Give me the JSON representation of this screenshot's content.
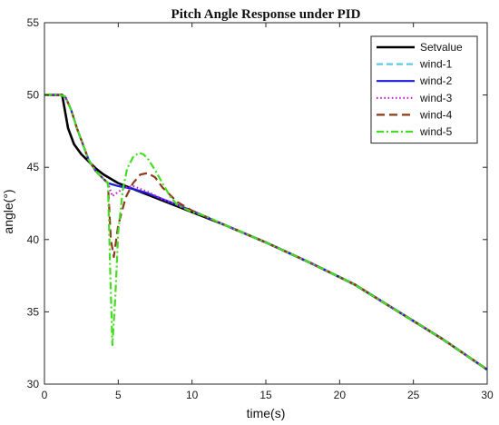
{
  "chart_data": {
    "type": "line",
    "title": "Pitch Angle Response under PID",
    "xlabel": "time(s)",
    "ylabel": "angle(°)",
    "xlim": [
      0,
      30
    ],
    "ylim": [
      30,
      55
    ],
    "xticks": [
      0,
      5,
      10,
      15,
      20,
      25,
      30
    ],
    "yticks": [
      30,
      35,
      40,
      45,
      50,
      55
    ],
    "grid": false,
    "legend_position": "top-right",
    "series": [
      {
        "name": "Setvalue",
        "color": "#000000",
        "dash": "solid",
        "x": [
          0,
          1.2,
          1.6,
          2.0,
          2.5,
          3.0,
          3.5,
          4.0,
          5.0,
          6.0,
          7.0,
          8.0,
          9.0,
          10.0,
          12.0,
          15.0,
          18.0,
          21.0,
          24.0,
          27.0,
          30.0
        ],
        "y": [
          50,
          50,
          47.7,
          46.6,
          45.9,
          45.4,
          44.9,
          44.5,
          43.9,
          43.5,
          43.1,
          42.7,
          42.3,
          41.9,
          41.1,
          39.8,
          38.4,
          36.9,
          35.0,
          33.1,
          31.0
        ]
      },
      {
        "name": "wind-1",
        "color": "#5bc8e8",
        "dash": "dashed",
        "x": [
          0,
          1.0,
          1.4,
          1.8,
          2.2,
          2.6,
          3.0,
          3.5,
          4.0,
          4.3,
          5.0,
          6.0,
          7.0,
          8.0,
          9.0,
          10.0,
          12.0,
          15.0,
          18.0,
          21.0,
          24.0,
          27.0,
          30.0
        ],
        "y": [
          50,
          50,
          49.9,
          49.0,
          47.7,
          46.6,
          45.5,
          44.7,
          44.2,
          43.9,
          43.7,
          43.5,
          43.2,
          42.8,
          42.4,
          42.0,
          41.1,
          39.8,
          38.4,
          36.9,
          35.0,
          33.1,
          31.0
        ]
      },
      {
        "name": "wind-2",
        "color": "#1a1adf",
        "dash": "solid",
        "x": [
          0,
          1.0,
          1.4,
          1.8,
          2.2,
          2.6,
          3.0,
          3.5,
          4.0,
          4.3,
          5.0,
          6.0,
          7.0,
          8.0,
          9.0,
          10.0,
          12.0,
          15.0,
          18.0,
          21.0,
          24.0,
          27.0,
          30.0
        ],
        "y": [
          50,
          50,
          49.9,
          49.0,
          47.7,
          46.6,
          45.5,
          44.7,
          44.2,
          43.9,
          43.7,
          43.5,
          43.2,
          42.8,
          42.4,
          42.0,
          41.1,
          39.8,
          38.4,
          36.9,
          35.0,
          33.1,
          31.0
        ]
      },
      {
        "name": "wind-3",
        "color": "#c026d3",
        "dash": "dotted",
        "x": [
          0,
          1.0,
          1.4,
          1.8,
          2.2,
          2.6,
          3.0,
          3.5,
          4.0,
          4.3,
          4.6,
          5.0,
          5.5,
          6.0,
          7.0,
          8.0,
          9.0,
          10.0,
          12.0,
          15.0,
          18.0,
          21.0,
          24.0,
          27.0,
          30.0
        ],
        "y": [
          50,
          50,
          49.9,
          49.0,
          47.7,
          46.6,
          45.5,
          44.7,
          44.2,
          43.9,
          43.0,
          43.3,
          43.6,
          43.7,
          43.3,
          42.8,
          42.4,
          42.0,
          41.1,
          39.8,
          38.4,
          36.9,
          35.0,
          33.1,
          31.0
        ]
      },
      {
        "name": "wind-4",
        "color": "#8b3a1a",
        "dash": "longdash",
        "x": [
          0,
          1.0,
          1.4,
          1.8,
          2.2,
          2.6,
          3.0,
          3.5,
          4.0,
          4.3,
          4.5,
          4.7,
          5.0,
          5.5,
          6.0,
          6.5,
          7.0,
          7.5,
          8.0,
          9.0,
          10.0,
          12.0,
          15.0,
          18.0,
          21.0,
          24.0,
          27.0,
          30.0
        ],
        "y": [
          50,
          50,
          49.9,
          49.0,
          47.7,
          46.6,
          45.5,
          44.7,
          44.2,
          43.9,
          40.0,
          38.8,
          41.0,
          42.9,
          43.9,
          44.5,
          44.6,
          44.3,
          43.6,
          42.6,
          42.0,
          41.1,
          39.8,
          38.4,
          36.9,
          35.0,
          33.1,
          31.0
        ]
      },
      {
        "name": "wind-5",
        "color": "#44dd22",
        "dash": "dashdot",
        "x": [
          0,
          1.0,
          1.4,
          1.8,
          2.2,
          2.6,
          3.0,
          3.5,
          4.0,
          4.3,
          4.45,
          4.6,
          4.8,
          5.0,
          5.3,
          5.6,
          6.0,
          6.4,
          6.7,
          7.0,
          7.5,
          8.0,
          8.5,
          9.0,
          10.0,
          11.0,
          12.0,
          15.0,
          18.0,
          21.0,
          24.0,
          27.0,
          30.0
        ],
        "y": [
          50,
          50,
          49.9,
          49.0,
          47.7,
          46.6,
          45.5,
          44.7,
          44.2,
          43.9,
          38.0,
          32.7,
          36.0,
          40.5,
          43.4,
          44.9,
          45.7,
          46.0,
          45.9,
          45.6,
          44.8,
          43.9,
          43.0,
          42.4,
          41.9,
          41.6,
          41.1,
          39.8,
          38.4,
          36.9,
          35.0,
          33.1,
          31.0
        ]
      }
    ]
  }
}
